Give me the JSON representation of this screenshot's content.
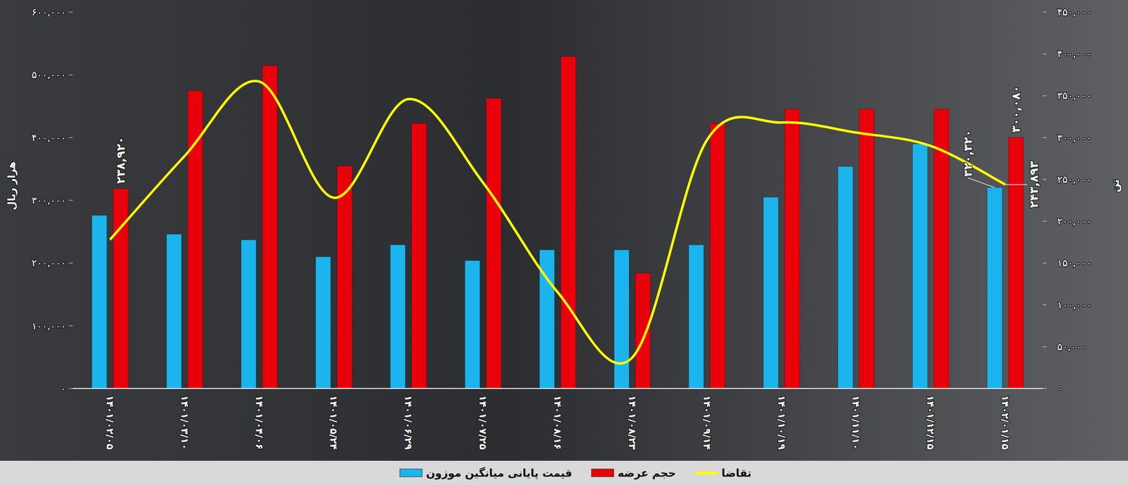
{
  "chart_data": {
    "type": "bar",
    "categories": [
      "۱۴۰۱/۰۲/۰۵",
      "۱۴۰۱/۰۳/۱۰",
      "۱۴۰۱/۰۴/۰۶",
      "۱۴۰۱/۰۵/۲۴",
      "۱۴۰۱/۰۶/۲۹",
      "۱۴۰۱/۰۷/۲۵",
      "۱۴۰۱/۰۸/۱۶",
      "۱۴۰۱/۰۸/۲۳",
      "۱۴۰۱/۰۹/۱۴",
      "۱۴۰۱/۱۰/۱۹",
      "۱۴۰۱/۱۱/۱۰",
      "۱۴۰۱/۱۲/۱۵",
      "۱۴۰۲/۰۱/۱۵"
    ],
    "series": [
      {
        "name": "قیمت پایانی میانگین موزون",
        "type": "bar",
        "color": "#1cb4ec",
        "values": [
          276000,
          246000,
          237000,
          210000,
          229000,
          204000,
          221000,
          221000,
          229000,
          305000,
          354000,
          390000,
          320320
        ],
        "value_labels": [
          null,
          null,
          null,
          null,
          null,
          null,
          null,
          null,
          null,
          null,
          null,
          null,
          "۳۲۰,۳۲۰"
        ]
      },
      {
        "name": "حجم عرضه",
        "type": "bar",
        "color": "#e8000b",
        "axis": "y2",
        "values": [
          238920,
          356000,
          386000,
          266000,
          317000,
          347000,
          397000,
          138000,
          317000,
          334000,
          334000,
          334000,
          300080
        ],
        "value_labels": [
          "۲۳۸,۹۲۰",
          null,
          null,
          null,
          null,
          null,
          null,
          null,
          null,
          null,
          null,
          null,
          "۳۰۰,۰۸۰"
        ]
      },
      {
        "name": "تقاضا",
        "type": "line",
        "color": "#ffff00",
        "axis": "y2",
        "line_style": "solid",
        "values": [
          178000,
          278000,
          367000,
          228000,
          346000,
          246000,
          115000,
          37000,
          297000,
          318000,
          306000,
          290000,
          243893
        ],
        "value_labels": [
          null,
          null,
          null,
          null,
          null,
          null,
          null,
          null,
          null,
          null,
          null,
          null,
          "۲۴۳,۸۹۳"
        ]
      }
    ],
    "y_label": "هزار ریال",
    "y2_label": "تن",
    "ylim": [
      0,
      600000
    ],
    "yticks": [
      {
        "value": 0,
        "label": "۰"
      },
      {
        "value": 100000,
        "label": "۱۰۰,۰۰۰"
      },
      {
        "value": 200000,
        "label": "۲۰۰,۰۰۰"
      },
      {
        "value": 300000,
        "label": "۳۰۰,۰۰۰"
      },
      {
        "value": 400000,
        "label": "۴۰۰,۰۰۰"
      },
      {
        "value": 500000,
        "label": "۵۰۰,۰۰۰"
      },
      {
        "value": 600000,
        "label": "۶۰۰,۰۰۰"
      }
    ],
    "y2lim": [
      0,
      450000
    ],
    "y2ticks": [
      {
        "value": 0,
        "label": "۰"
      },
      {
        "value": 50000,
        "label": "۵۰,۰۰۰"
      },
      {
        "value": 100000,
        "label": "۱۰۰,۰۰۰"
      },
      {
        "value": 150000,
        "label": "۱۵۰,۰۰۰"
      },
      {
        "value": 200000,
        "label": "۲۰۰,۰۰۰"
      },
      {
        "value": 250000,
        "label": "۲۵۰,۰۰۰"
      },
      {
        "value": 300000,
        "label": "۳۰۰,۰۰۰"
      },
      {
        "value": 350000,
        "label": "۳۵۰,۰۰۰"
      },
      {
        "value": 400000,
        "label": "۴۰۰,۰۰۰"
      },
      {
        "value": 450000,
        "label": "۴۵۰,۰۰۰"
      }
    ],
    "grid": false,
    "legend": "bottom",
    "data_labels": true
  }
}
